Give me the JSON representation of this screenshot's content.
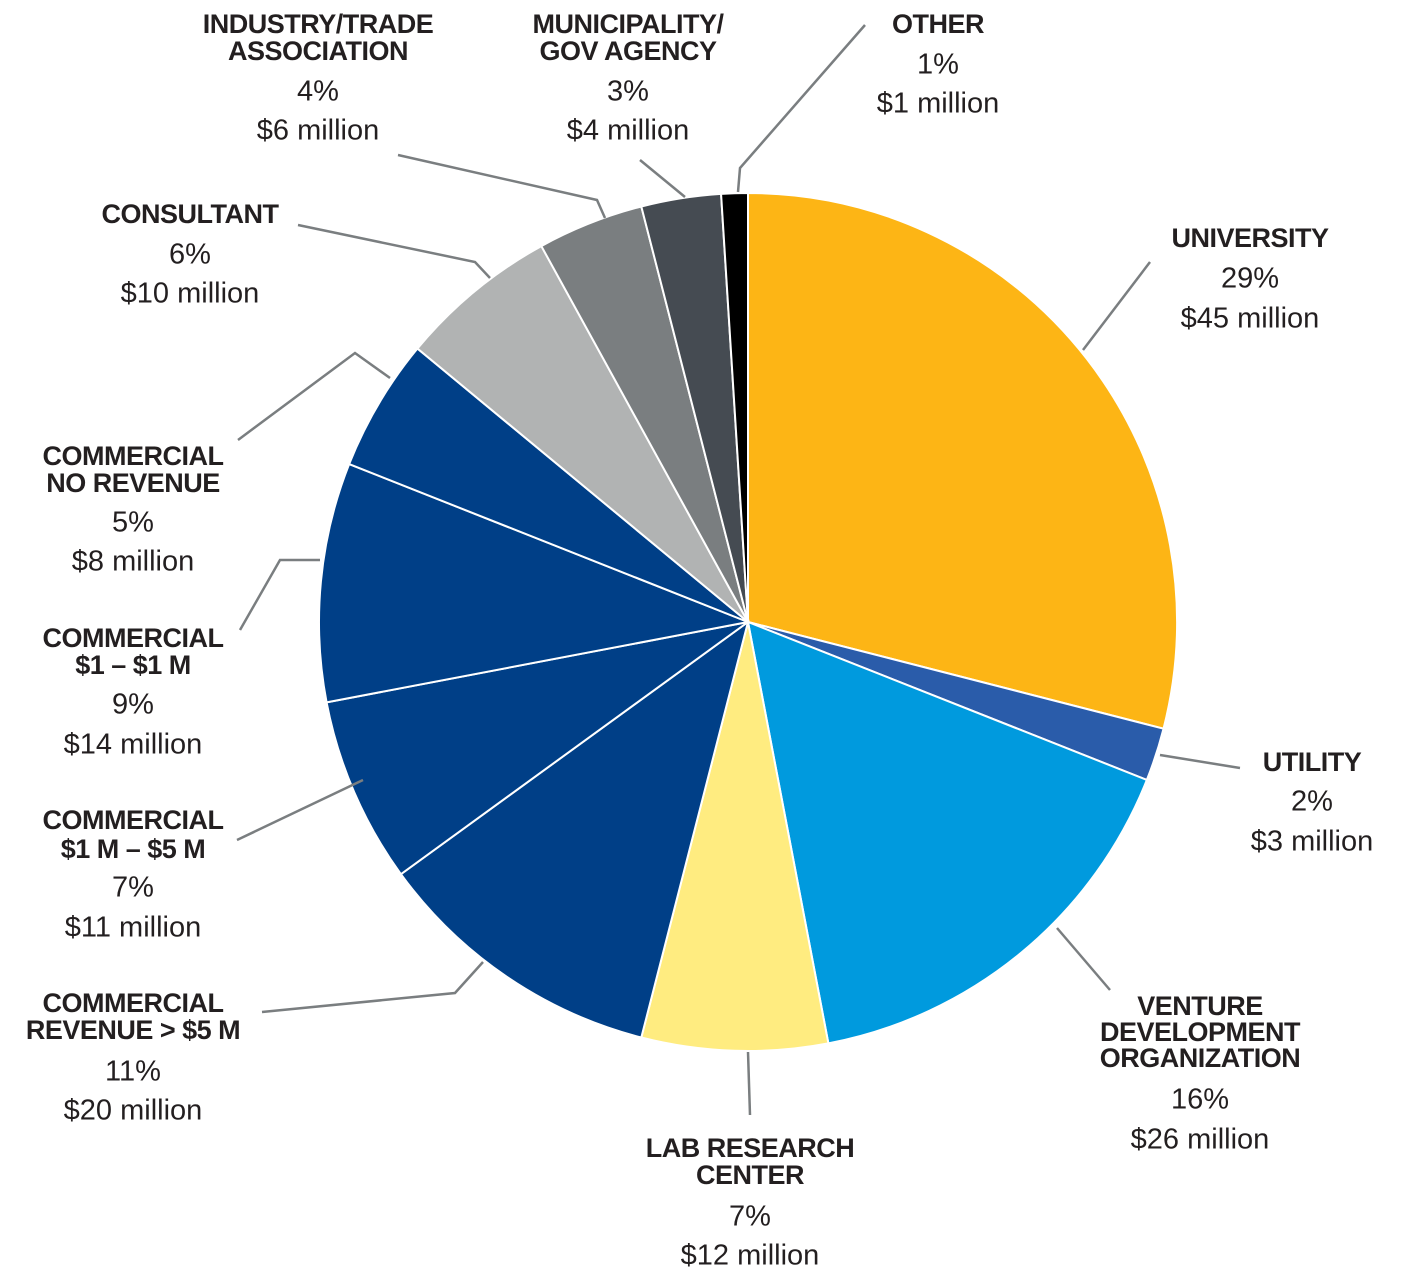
{
  "chart_data": {
    "type": "pie",
    "categories": [
      [
        "UNIVERSITY"
      ],
      [
        "UTILITY"
      ],
      [
        "VENTURE",
        "DEVELOPMENT",
        "ORGANIZATION"
      ],
      [
        "LAB RESEARCH",
        "CENTER"
      ],
      [
        "COMMERCIAL",
        "REVENUE > $5 M"
      ],
      [
        "COMMERCIAL",
        "$1 M – $5 M"
      ],
      [
        "COMMERCIAL",
        "$1 – $1 M"
      ],
      [
        "COMMERCIAL",
        "NO REVENUE"
      ],
      [
        "CONSULTANT"
      ],
      [
        "INDUSTRY/TRADE",
        "ASSOCIATION"
      ],
      [
        "MUNICIPALITY/",
        "GOV AGENCY"
      ],
      [
        "OTHER"
      ]
    ],
    "values": [
      29,
      2,
      16,
      7,
      11,
      7,
      9,
      5,
      6,
      4,
      3,
      1
    ],
    "value_labels": [
      "29%",
      "2%",
      "16%",
      "7%",
      "11%",
      "7%",
      "9%",
      "5%",
      "6%",
      "4%",
      "3%",
      "1%"
    ],
    "amount_labels": [
      "$45 million",
      "$3 million",
      "$26 million",
      "$12 million",
      "$20 million",
      "$11 million",
      "$14 million",
      "$8 million",
      "$10 million",
      "$6 million",
      "$4 million",
      "$1 million"
    ],
    "colors": [
      "#fdb515",
      "#2a5caa",
      "#009ade",
      "#ffec80",
      "#003f87",
      "#003f87",
      "#003f87",
      "#003f87",
      "#b1b3b3",
      "#7a7e80",
      "#454b52",
      "#000000"
    ]
  }
}
